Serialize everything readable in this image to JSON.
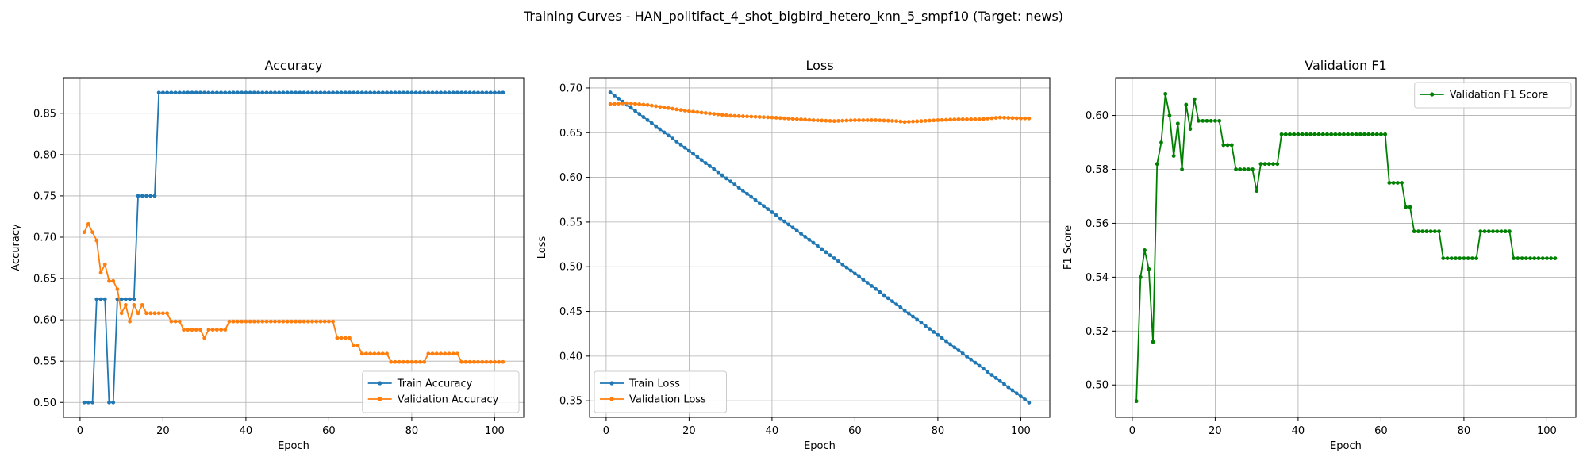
{
  "figure": {
    "suptitle": "Training Curves - HAN_politifact_4_shot_bigbird_hetero_knn_5_smpf10 (Target: news)"
  },
  "chart_data": [
    {
      "type": "line",
      "title": "Accuracy",
      "xlabel": "Epoch",
      "ylabel": "Accuracy",
      "xlim": [
        -4,
        107
      ],
      "ylim": [
        0.482,
        0.893
      ],
      "xticks": [
        0,
        20,
        40,
        60,
        80,
        100
      ],
      "yticks": [
        0.5,
        0.55,
        0.6,
        0.65,
        0.7,
        0.75,
        0.8,
        0.85
      ],
      "ytick_decimals": 2,
      "grid": true,
      "legend_position": "lower-right",
      "series": [
        {
          "name": "Train Accuracy",
          "color": "#1f77b4",
          "x_start": 1,
          "values": [
            0.5,
            0.5,
            0.5,
            0.625,
            0.625,
            0.625,
            0.5,
            0.5,
            0.625,
            0.625,
            0.625,
            0.625,
            0.625,
            0.75,
            0.75,
            0.75,
            0.75,
            0.75,
            0.875,
            0.875,
            0.875,
            0.875,
            0.875,
            0.875,
            0.875,
            0.875,
            0.875,
            0.875,
            0.875,
            0.875,
            0.875,
            0.875,
            0.875,
            0.875,
            0.875,
            0.875,
            0.875,
            0.875,
            0.875,
            0.875,
            0.875,
            0.875,
            0.875,
            0.875,
            0.875,
            0.875,
            0.875,
            0.875,
            0.875,
            0.875,
            0.875,
            0.875,
            0.875,
            0.875,
            0.875,
            0.875,
            0.875,
            0.875,
            0.875,
            0.875,
            0.875,
            0.875,
            0.875,
            0.875,
            0.875,
            0.875,
            0.875,
            0.875,
            0.875,
            0.875,
            0.875,
            0.875,
            0.875,
            0.875,
            0.875,
            0.875,
            0.875,
            0.875,
            0.875,
            0.875,
            0.875,
            0.875,
            0.875,
            0.875,
            0.875,
            0.875,
            0.875,
            0.875,
            0.875,
            0.875,
            0.875,
            0.875,
            0.875,
            0.875,
            0.875,
            0.875,
            0.875,
            0.875,
            0.875,
            0.875,
            0.875,
            0.875
          ]
        },
        {
          "name": "Validation Accuracy",
          "color": "#ff7f0e",
          "x_start": 1,
          "values": [
            0.706,
            0.716,
            0.706,
            0.696,
            0.657,
            0.667,
            0.647,
            0.647,
            0.637,
            0.608,
            0.618,
            0.598,
            0.618,
            0.608,
            0.618,
            0.608,
            0.608,
            0.608,
            0.608,
            0.608,
            0.608,
            0.598,
            0.598,
            0.598,
            0.588,
            0.588,
            0.588,
            0.588,
            0.588,
            0.578,
            0.588,
            0.588,
            0.588,
            0.588,
            0.588,
            0.598,
            0.598,
            0.598,
            0.598,
            0.598,
            0.598,
            0.598,
            0.598,
            0.598,
            0.598,
            0.598,
            0.598,
            0.598,
            0.598,
            0.598,
            0.598,
            0.598,
            0.598,
            0.598,
            0.598,
            0.598,
            0.598,
            0.598,
            0.598,
            0.598,
            0.598,
            0.578,
            0.578,
            0.578,
            0.578,
            0.569,
            0.569,
            0.559,
            0.559,
            0.559,
            0.559,
            0.559,
            0.559,
            0.559,
            0.549,
            0.549,
            0.549,
            0.549,
            0.549,
            0.549,
            0.549,
            0.549,
            0.549,
            0.559,
            0.559,
            0.559,
            0.559,
            0.559,
            0.559,
            0.559,
            0.559,
            0.549,
            0.549,
            0.549,
            0.549,
            0.549,
            0.549,
            0.549,
            0.549,
            0.549,
            0.549,
            0.549
          ]
        }
      ]
    },
    {
      "type": "line",
      "title": "Loss",
      "xlabel": "Epoch",
      "ylabel": "Loss",
      "xlim": [
        -4,
        107
      ],
      "ylim": [
        0.3315,
        0.7115
      ],
      "xticks": [
        0,
        20,
        40,
        60,
        80,
        100
      ],
      "yticks": [
        0.35,
        0.4,
        0.45,
        0.5,
        0.55,
        0.6,
        0.65,
        0.7
      ],
      "ytick_decimals": 2,
      "grid": true,
      "legend_position": "lower-left",
      "series": [
        {
          "name": "Train Loss",
          "color": "#1f77b4",
          "x": [
            1,
            102
          ],
          "values": [
            0.695,
            0.348
          ]
        },
        {
          "name": "Validation Loss",
          "color": "#ff7f0e",
          "x": [
            1,
            5,
            10,
            20,
            30,
            40,
            50,
            55,
            60,
            65,
            70,
            72,
            80,
            85,
            90,
            95,
            100,
            102
          ],
          "values": [
            0.682,
            0.683,
            0.681,
            0.674,
            0.669,
            0.667,
            0.664,
            0.663,
            0.664,
            0.664,
            0.663,
            0.662,
            0.664,
            0.665,
            0.665,
            0.667,
            0.666,
            0.666
          ]
        }
      ]
    },
    {
      "type": "line",
      "title": "Validation F1",
      "xlabel": "Epoch",
      "ylabel": "F1 Score",
      "xlim": [
        -4,
        107
      ],
      "ylim": [
        0.488,
        0.614
      ],
      "xticks": [
        0,
        20,
        40,
        60,
        80,
        100
      ],
      "yticks": [
        0.5,
        0.52,
        0.54,
        0.56,
        0.58,
        0.6
      ],
      "ytick_decimals": 2,
      "grid": true,
      "legend_position": "top-right",
      "series": [
        {
          "name": "Validation F1 Score",
          "color": "#008000",
          "x_start": 1,
          "values": [
            0.494,
            0.54,
            0.55,
            0.543,
            0.516,
            0.582,
            0.59,
            0.608,
            0.6,
            0.585,
            0.597,
            0.58,
            0.604,
            0.595,
            0.606,
            0.598,
            0.598,
            0.598,
            0.598,
            0.598,
            0.598,
            0.589,
            0.589,
            0.589,
            0.58,
            0.58,
            0.58,
            0.58,
            0.58,
            0.572,
            0.582,
            0.582,
            0.582,
            0.582,
            0.582,
            0.593,
            0.593,
            0.593,
            0.593,
            0.593,
            0.593,
            0.593,
            0.593,
            0.593,
            0.593,
            0.593,
            0.593,
            0.593,
            0.593,
            0.593,
            0.593,
            0.593,
            0.593,
            0.593,
            0.593,
            0.593,
            0.593,
            0.593,
            0.593,
            0.593,
            0.593,
            0.575,
            0.575,
            0.575,
            0.575,
            0.566,
            0.566,
            0.557,
            0.557,
            0.557,
            0.557,
            0.557,
            0.557,
            0.557,
            0.547,
            0.547,
            0.547,
            0.547,
            0.547,
            0.547,
            0.547,
            0.547,
            0.547,
            0.557,
            0.557,
            0.557,
            0.557,
            0.557,
            0.557,
            0.557,
            0.557,
            0.547,
            0.547,
            0.547,
            0.547,
            0.547,
            0.547,
            0.547,
            0.547,
            0.547,
            0.547,
            0.547
          ]
        }
      ]
    }
  ]
}
